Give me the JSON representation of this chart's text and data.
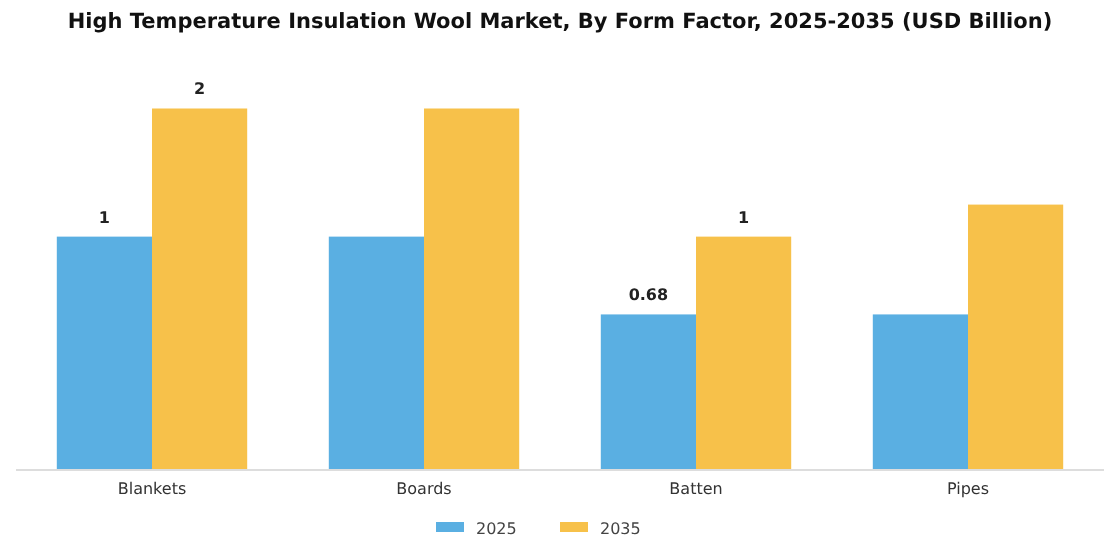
{
  "chart_data": {
    "type": "bar",
    "title": "High Temperature Insulation Wool Market, By Form Factor, 2025-2035 (USD Billion)",
    "categories": [
      "Blankets",
      "Boards",
      "Batten",
      "Pipes"
    ],
    "series": [
      {
        "name": "2025",
        "color": "#5aafe2",
        "values": [
          1.02,
          1.02,
          0.68,
          0.68
        ],
        "value_labels": [
          "1",
          null,
          "0.68",
          null
        ]
      },
      {
        "name": "2035",
        "color": "#f7c14a",
        "values": [
          1.58,
          1.58,
          1.02,
          1.16
        ],
        "value_labels": [
          "2",
          null,
          "1",
          null
        ]
      }
    ],
    "legend": "bottom"
  }
}
